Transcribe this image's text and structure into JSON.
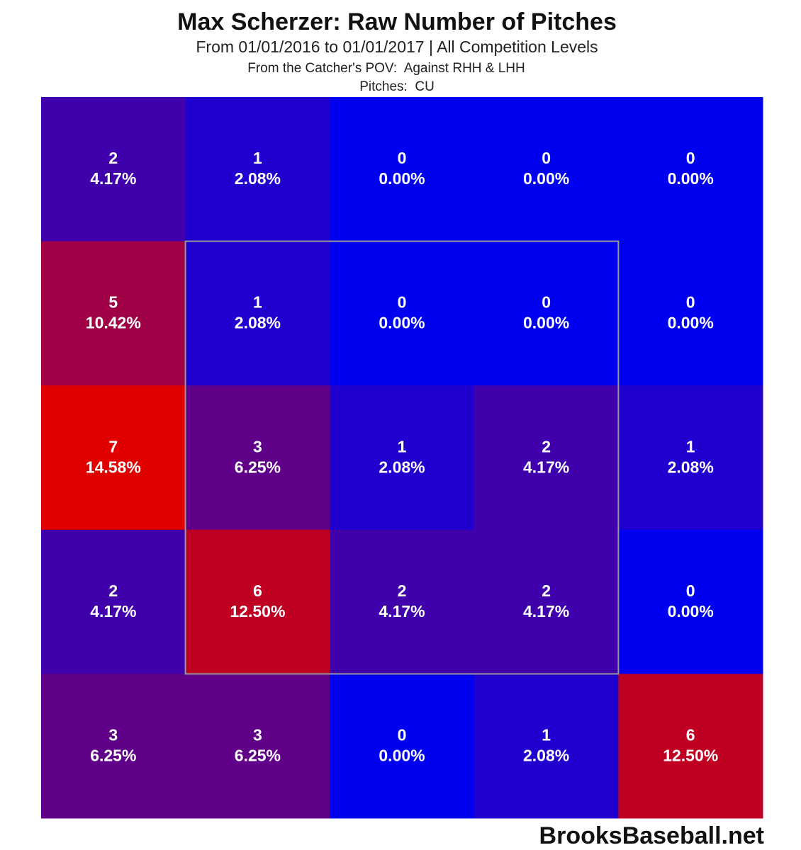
{
  "chart_data": {
    "type": "heatmap",
    "title": "Max Scherzer: Raw Number of Pitches",
    "subtitles": [
      "From 01/01/2016 to 01/01/2017 | All Competition Levels",
      "From the Catcher's POV:  Against RHH & LHH",
      "Pitches:  CU"
    ],
    "values": [
      [
        2,
        1,
        0,
        0,
        0
      ],
      [
        5,
        1,
        0,
        0,
        0
      ],
      [
        7,
        3,
        1,
        2,
        1
      ],
      [
        2,
        6,
        2,
        2,
        0
      ],
      [
        3,
        3,
        0,
        1,
        6
      ]
    ],
    "percents": [
      [
        4.17,
        2.08,
        0.0,
        0.0,
        0.0
      ],
      [
        10.42,
        2.08,
        0.0,
        0.0,
        0.0
      ],
      [
        14.58,
        6.25,
        2.08,
        4.17,
        2.08
      ],
      [
        4.17,
        12.5,
        4.17,
        4.17,
        0.0
      ],
      [
        6.25,
        6.25,
        0.0,
        2.08,
        12.5
      ]
    ],
    "percent_labels": [
      [
        "4.17%",
        "2.08%",
        "0.00%",
        "0.00%",
        "0.00%"
      ],
      [
        "10.42%",
        "2.08%",
        "0.00%",
        "0.00%",
        "0.00%"
      ],
      [
        "14.58%",
        "6.25%",
        "2.08%",
        "4.17%",
        "2.08%"
      ],
      [
        "4.17%",
        "12.50%",
        "4.17%",
        "4.17%",
        "0.00%"
      ],
      [
        "6.25%",
        "6.25%",
        "0.00%",
        "2.08%",
        "12.50%"
      ]
    ],
    "colors": [
      "#0000f0",
      "#e00000"
    ],
    "watermark": "BrooksBaseball.net"
  }
}
